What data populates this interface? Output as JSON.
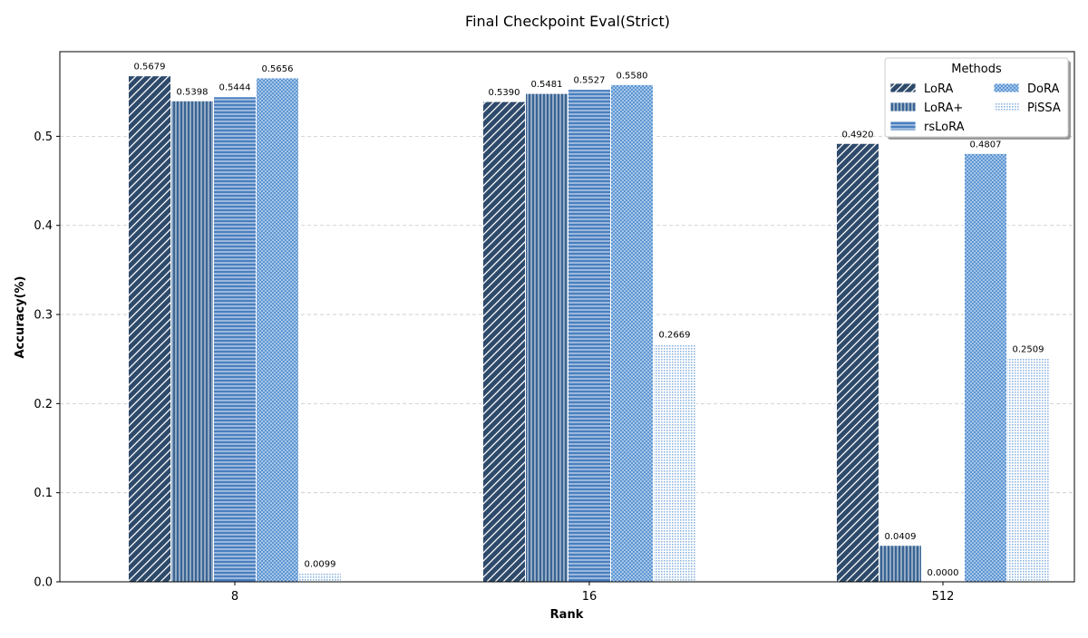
{
  "chart_data": {
    "type": "bar",
    "title": "Final Checkpoint Eval(Strict)",
    "xlabel": "Rank",
    "ylabel": "Accuracy(%)",
    "categories": [
      "8",
      "16",
      "512"
    ],
    "ylim": [
      0,
      0.595
    ],
    "yticks": [
      "0.0",
      "0.1",
      "0.2",
      "0.3",
      "0.4",
      "0.5"
    ],
    "grid": "y-dashed",
    "legend": {
      "title": "Methods",
      "position": "top-right",
      "columns": 2
    },
    "series": [
      {
        "name": "LoRA",
        "values": [
          0.5679,
          0.539,
          0.492
        ],
        "labels": [
          "0.5679",
          "0.5390",
          "0.4920"
        ],
        "color": "#2e4a6b",
        "hatch": "diagonal"
      },
      {
        "name": "LoRA+",
        "values": [
          0.5398,
          0.5481,
          0.0409
        ],
        "labels": [
          "0.5398",
          "0.5481",
          "0.0409"
        ],
        "color": "#3a6493",
        "hatch": "vertical"
      },
      {
        "name": "rsLoRA",
        "values": [
          0.5444,
          0.5527,
          0.0
        ],
        "labels": [
          "0.5444",
          "0.5527",
          "0.0000"
        ],
        "color": "#4a7fbf",
        "hatch": "horizontal"
      },
      {
        "name": "DoRA",
        "values": [
          0.5656,
          0.558,
          0.4807
        ],
        "labels": [
          "0.5656",
          "0.5580",
          "0.4807"
        ],
        "color": "#5d96d4",
        "hatch": "dots"
      },
      {
        "name": "PiSSA",
        "values": [
          0.0099,
          0.2669,
          0.2509
        ],
        "labels": [
          "0.0099",
          "0.2669",
          "0.2509"
        ],
        "color": "#8fb6e0",
        "hatch": "fine-dots"
      }
    ]
  }
}
